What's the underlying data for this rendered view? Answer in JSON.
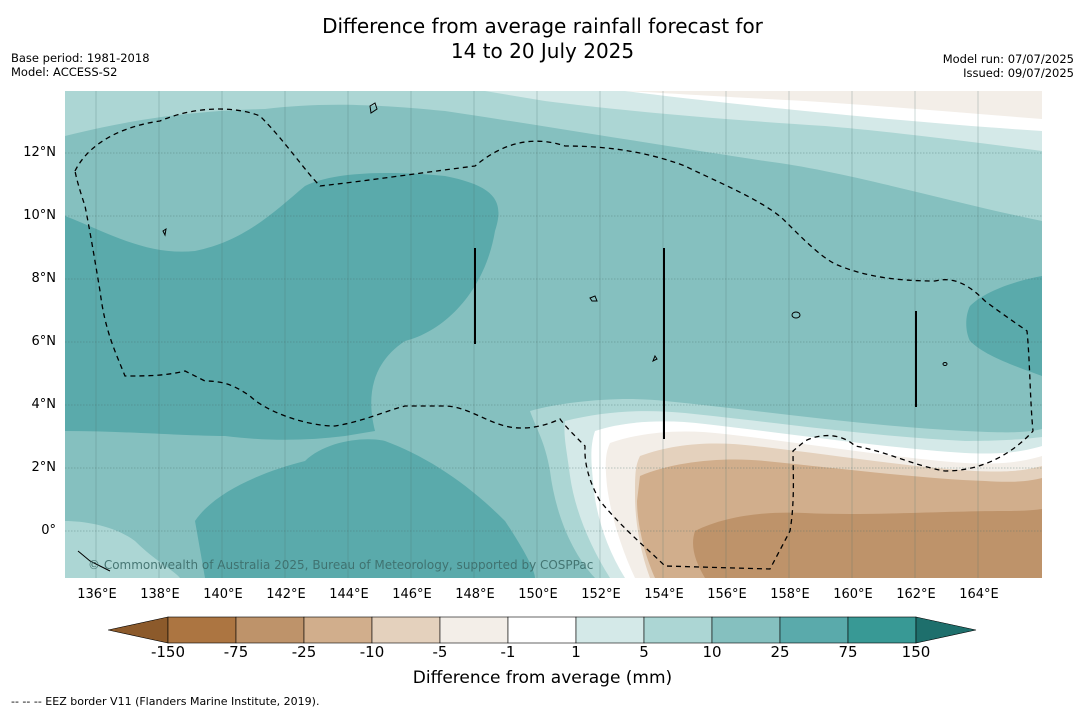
{
  "title": {
    "line1": "Difference from average rainfall forecast for",
    "line2": "14 to 20 July 2025"
  },
  "meta_left": {
    "base_period": "Base period: 1981-2018",
    "model": "Model: ACCESS-S2"
  },
  "meta_right": {
    "model_run": "Model run: 07/07/2025",
    "issued": "Issued: 09/07/2025"
  },
  "map": {
    "lat_labels": [
      "12°N",
      "10°N",
      "8°N",
      "6°N",
      "4°N",
      "2°N",
      "0°"
    ],
    "lon_labels": [
      "136°E",
      "138°E",
      "140°E",
      "142°E",
      "144°E",
      "146°E",
      "148°E",
      "150°E",
      "152°E",
      "154°E",
      "156°E",
      "158°E",
      "160°E",
      "162°E",
      "164°E"
    ],
    "copyright": "© Commonwealth of Australia 2025, Bureau of Meteorology, supported by COSPPac"
  },
  "colorbar": {
    "ticks": [
      "-150",
      "-75",
      "-25",
      "-10",
      "-5",
      "-1",
      "1",
      "5",
      "10",
      "25",
      "75",
      "150"
    ],
    "colors": [
      "#8c5a2b",
      "#ac7541",
      "#be936a",
      "#d1ae8c",
      "#e4d1bd",
      "#f3eee8",
      "#ffffff",
      "#d4e9e8",
      "#acd6d4",
      "#85c0bf",
      "#5aaaab",
      "#389995",
      "#1e6f6c"
    ],
    "label": "Difference from average (mm)"
  },
  "footnote": "--  --  -- EEZ border V11 (Flanders Marine Institute, 2019)."
}
